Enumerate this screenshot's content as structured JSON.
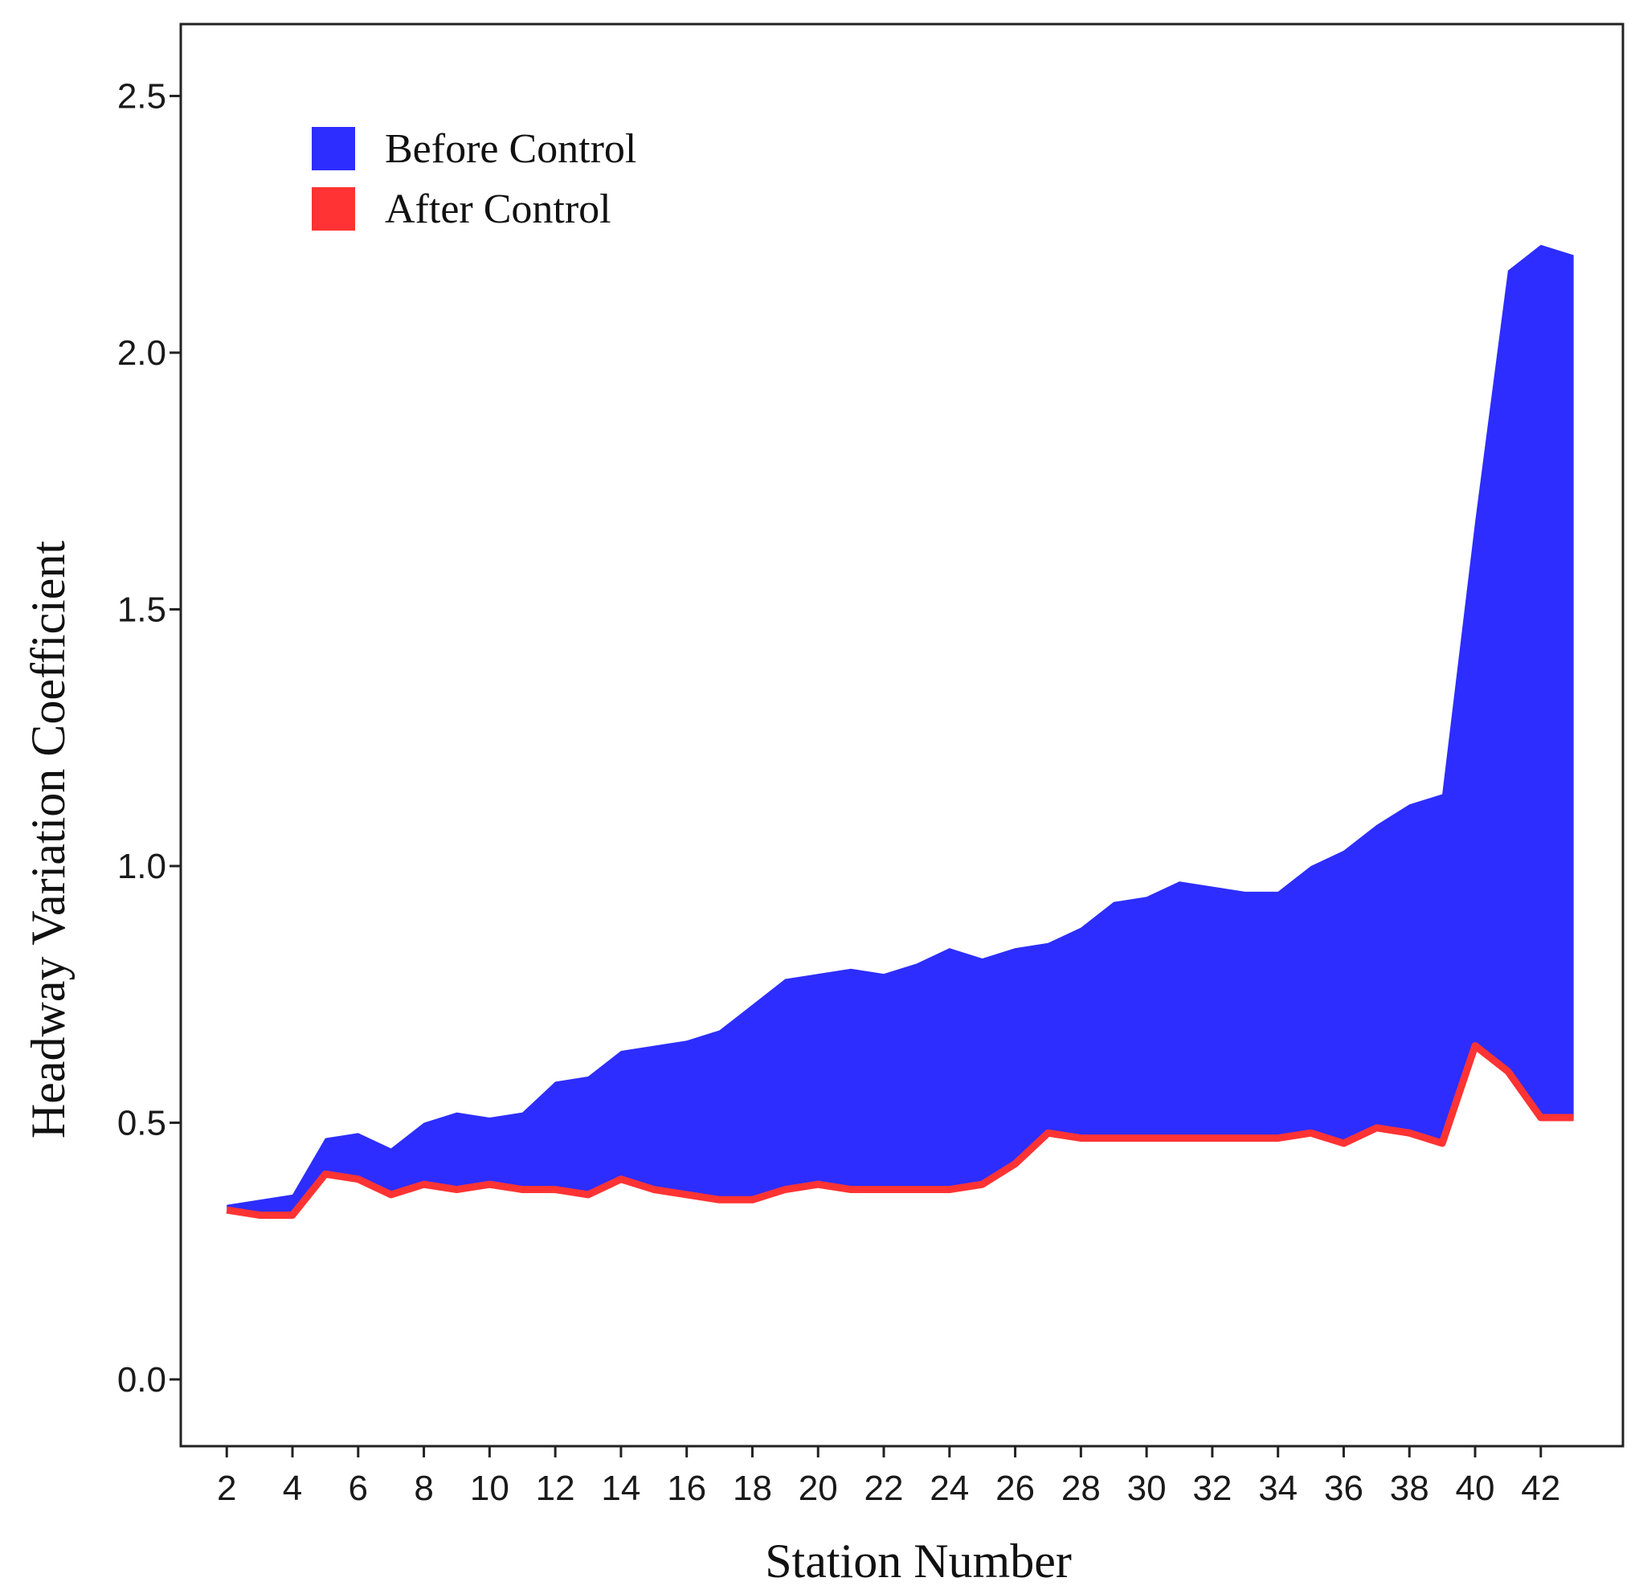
{
  "chart_data": {
    "type": "area",
    "title": "",
    "xlabel": "Station Number",
    "ylabel": "Headway Variation Coefficient",
    "xlim": [
      0.6,
      44.5
    ],
    "ylim": [
      -0.13,
      2.64
    ],
    "grid": false,
    "legend_position": "top-left",
    "x_ticks": [
      2,
      4,
      6,
      8,
      10,
      12,
      14,
      16,
      18,
      20,
      22,
      24,
      26,
      28,
      30,
      32,
      34,
      36,
      38,
      40,
      42
    ],
    "x_tick_labels": [
      "2",
      "4",
      "6",
      "8",
      "10",
      "12",
      "14",
      "16",
      "18",
      "20",
      "22",
      "24",
      "26",
      "28",
      "30",
      "32",
      "34",
      "36",
      "38",
      "40",
      "42"
    ],
    "y_ticks": [
      0.0,
      0.5,
      1.0,
      1.5,
      2.0,
      2.5
    ],
    "y_tick_labels": [
      "0.0",
      "0.5",
      "1.0",
      "1.5",
      "2.0",
      "2.5"
    ],
    "x": [
      2,
      3,
      4,
      5,
      6,
      7,
      8,
      9,
      10,
      11,
      12,
      13,
      14,
      15,
      16,
      17,
      18,
      19,
      20,
      21,
      22,
      23,
      24,
      25,
      26,
      27,
      28,
      29,
      30,
      31,
      32,
      33,
      34,
      35,
      36,
      37,
      38,
      39,
      40,
      41,
      42,
      43
    ],
    "series": [
      {
        "name": "Before Control",
        "color": "#2d2dff",
        "values": [
          0.34,
          0.35,
          0.36,
          0.47,
          0.48,
          0.45,
          0.5,
          0.52,
          0.51,
          0.52,
          0.58,
          0.59,
          0.64,
          0.65,
          0.66,
          0.68,
          0.73,
          0.78,
          0.79,
          0.8,
          0.79,
          0.81,
          0.84,
          0.82,
          0.84,
          0.85,
          0.88,
          0.93,
          0.94,
          0.97,
          0.96,
          0.95,
          0.95,
          1.0,
          1.03,
          1.08,
          1.12,
          1.14,
          1.67,
          2.16,
          2.21,
          2.19
        ]
      },
      {
        "name": "After Control",
        "color": "#ff3333",
        "values": [
          0.33,
          0.32,
          0.32,
          0.4,
          0.39,
          0.36,
          0.38,
          0.37,
          0.38,
          0.37,
          0.37,
          0.36,
          0.39,
          0.37,
          0.36,
          0.35,
          0.35,
          0.37,
          0.38,
          0.37,
          0.37,
          0.37,
          0.37,
          0.38,
          0.42,
          0.48,
          0.47,
          0.47,
          0.47,
          0.47,
          0.47,
          0.47,
          0.47,
          0.48,
          0.46,
          0.49,
          0.48,
          0.46,
          0.65,
          0.6,
          0.51,
          0.51
        ]
      }
    ]
  }
}
